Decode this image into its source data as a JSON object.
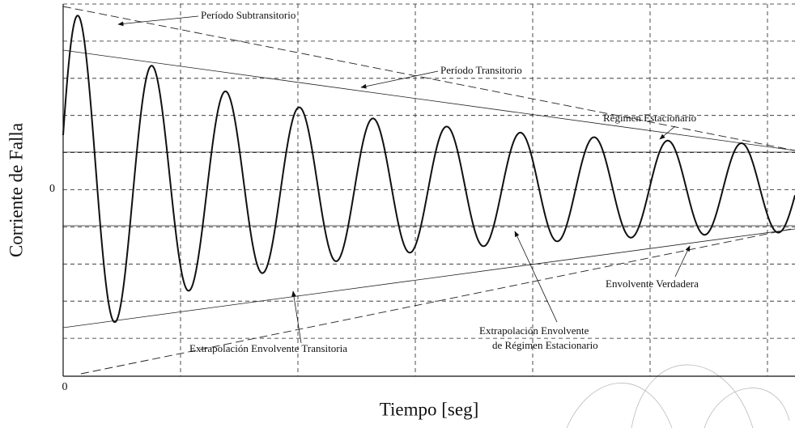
{
  "axes": {
    "x_label": "Tiempo [seg]",
    "y_label": "Corriente de Falla",
    "x_origin": "0",
    "y_origin": "0"
  },
  "annotations": [
    "Período Subtransitorio",
    "Período Transitorio",
    "Régimen Estacionario",
    "Envolvente Verdadera",
    "Extrapolación Envolvente",
    "de Régimen Estacionario",
    "Extrapolación Envolvente Transitoria"
  ]
}
